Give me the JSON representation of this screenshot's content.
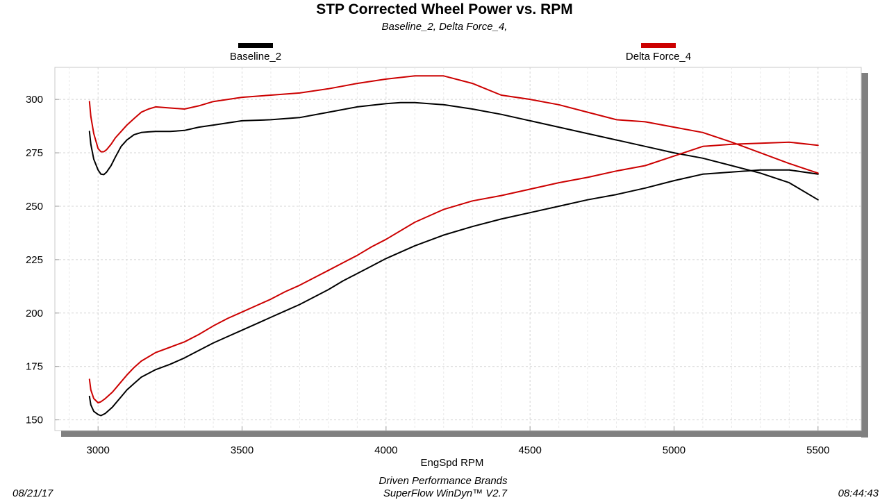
{
  "chart_data": {
    "type": "line",
    "title": "STP Corrected Wheel Power vs. RPM",
    "subtitle": "Baseline_2, Delta Force_4,",
    "xlabel": "EngSpd  RPM",
    "ylabel": "",
    "xlim": [
      2850,
      5650
    ],
    "ylim": [
      145,
      315
    ],
    "x_ticks": [
      "3000",
      "3500",
      "4000",
      "4500",
      "5000",
      "5500"
    ],
    "y_ticks": [
      "150",
      "175",
      "200",
      "225",
      "250",
      "275",
      "300"
    ],
    "grid": true,
    "legend_position": "top",
    "series": [
      {
        "name": "Baseline_2",
        "color": "#000000",
        "curves": [
          {
            "x": [
              2970,
              2975,
              2985,
              3000,
              3010,
              3020,
              3030,
              3045,
              3060,
              3080,
              3100,
              3125,
              3150,
              3175,
              3200,
              3250,
              3300,
              3350,
              3400,
              3500,
              3600,
              3700,
              3800,
              3900,
              4000,
              4050,
              4100,
              4200,
              4300,
              4400,
              4500,
              4600,
              4700,
              4800,
              4900,
              5000,
              5100,
              5200,
              5300,
              5400,
              5500
            ],
            "y": [
              285,
              279,
              272,
              267,
              265,
              264.8,
              266,
              269,
              273,
              278,
              281,
              283.5,
              284.5,
              284.8,
              285,
              285,
              285.5,
              287,
              288,
              290,
              290.5,
              291.5,
              294,
              296.5,
              298,
              298.5,
              298.5,
              297.5,
              295.5,
              293,
              290,
              287,
              284,
              281,
              278,
              275,
              272.5,
              269,
              265.5,
              261,
              253
            ]
          },
          {
            "x": [
              2970,
              2975,
              2985,
              3000,
              3010,
              3025,
              3050,
              3075,
              3100,
              3125,
              3150,
              3200,
              3250,
              3300,
              3350,
              3400,
              3450,
              3500,
              3550,
              3600,
              3650,
              3700,
              3750,
              3800,
              3850,
              3900,
              3950,
              4000,
              4100,
              4200,
              4300,
              4400,
              4500,
              4600,
              4700,
              4800,
              4900,
              5000,
              5100,
              5200,
              5300,
              5400,
              5500
            ],
            "y": [
              161,
              157,
              154,
              152.5,
              152,
              153,
              156,
              160,
              164,
              167,
              170,
              173.5,
              176,
              179,
              182.5,
              186,
              189,
              192,
              195,
              198,
              201,
              204,
              207.5,
              211,
              215,
              218.5,
              222,
              225.5,
              231.5,
              236.5,
              240.5,
              244,
              247,
              250,
              253,
              255.5,
              258.5,
              262,
              265,
              266,
              267,
              267,
              265
            ]
          }
        ]
      },
      {
        "name": "Delta Force_4",
        "color": "#cc0000",
        "curves": [
          {
            "x": [
              2970,
              2975,
              2985,
              3000,
              3010,
              3020,
              3030,
              3045,
              3060,
              3080,
              3100,
              3125,
              3150,
              3175,
              3200,
              3250,
              3300,
              3350,
              3400,
              3500,
              3600,
              3700,
              3800,
              3900,
              4000,
              4100,
              4200,
              4300,
              4400,
              4500,
              4600,
              4700,
              4800,
              4900,
              5000,
              5100,
              5200,
              5300,
              5400,
              5500
            ],
            "y": [
              299,
              292,
              284,
              277,
              275.5,
              275.5,
              276.5,
              279,
              282,
              285,
              288,
              291,
              294,
              295.5,
              296.5,
              296,
              295.5,
              297,
              299,
              301,
              302,
              303,
              305,
              307.5,
              309.5,
              311,
              311,
              307.5,
              302,
              300,
              297.5,
              294,
              290.5,
              289.5,
              287,
              284.5,
              280,
              275,
              270,
              265.5
            ]
          },
          {
            "x": [
              2970,
              2975,
              2985,
              3000,
              3010,
              3025,
              3050,
              3075,
              3100,
              3125,
              3150,
              3200,
              3250,
              3300,
              3350,
              3400,
              3450,
              3500,
              3550,
              3600,
              3650,
              3700,
              3750,
              3800,
              3850,
              3900,
              3950,
              4000,
              4100,
              4200,
              4300,
              4400,
              4500,
              4600,
              4700,
              4800,
              4900,
              5000,
              5100,
              5200,
              5300,
              5400,
              5500
            ],
            "y": [
              169,
              164,
              160,
              158,
              158.5,
              160,
              163,
              167,
              171,
              174.5,
              177.5,
              181.5,
              184,
              186.5,
              190,
              194,
              197.5,
              200.5,
              203.5,
              206.5,
              210,
              213,
              216.5,
              220,
              223.5,
              227,
              231,
              234.5,
              242.5,
              248.5,
              252.5,
              255,
              258,
              261,
              263.5,
              266.5,
              269,
              273.5,
              278,
              279,
              279.5,
              280,
              278.5
            ]
          }
        ]
      }
    ]
  },
  "footer": {
    "date": "08/21/17",
    "company": "Driven Performance Brands",
    "software": "SuperFlow WinDyn™  V2.7",
    "time": "08:44:43"
  }
}
